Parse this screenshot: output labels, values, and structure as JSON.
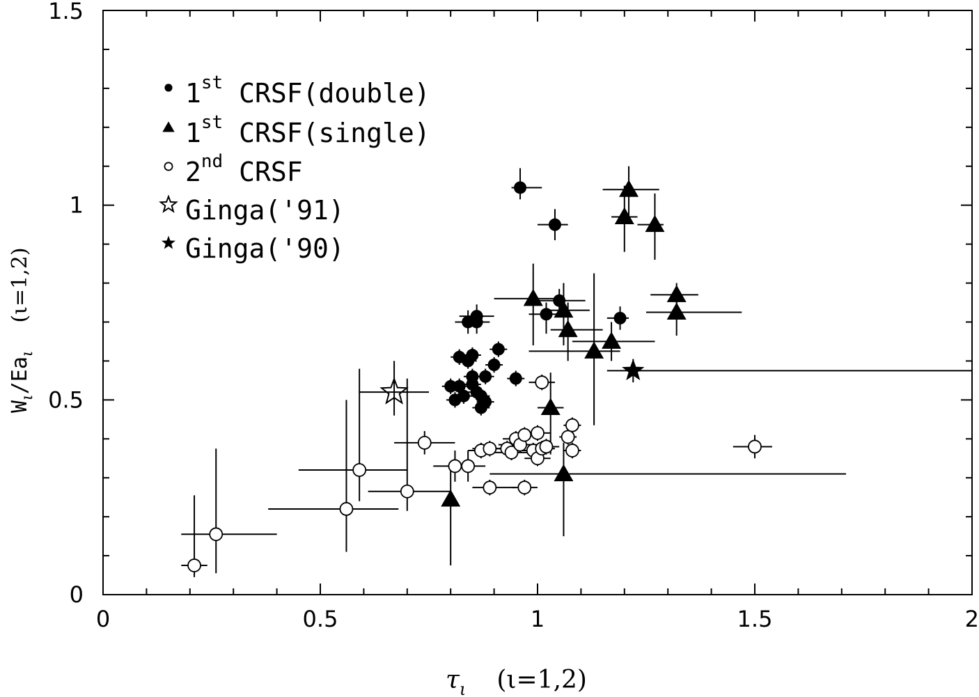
{
  "chart_data": {
    "type": "scatter",
    "xlim": [
      0,
      2
    ],
    "ylim": [
      0,
      1.5
    ],
    "x_ticks": [
      "0",
      "0.5",
      "1",
      "1.5",
      "2"
    ],
    "y_ticks": [
      "0",
      "0.5",
      "1",
      "1.5"
    ],
    "xlabel": {
      "main": "τ",
      "sub": "ι",
      "suffix": "(ι=1,2)"
    },
    "ylabel": {
      "main": "W",
      "sub1": "ι",
      "mid": "/Ea",
      "sub2": "ι",
      "suffix": "(ι=1,2)"
    },
    "grid": false,
    "legend_position": "top-left",
    "legend": [
      {
        "marker": "filled-circle",
        "pre": "1",
        "sup": "st",
        "post": " CRSF(double)"
      },
      {
        "marker": "filled-triangle",
        "pre": "1",
        "sup": "st",
        "post": " CRSF(single)"
      },
      {
        "marker": "open-circle",
        "pre": "2",
        "sup": "nd",
        "post": " CRSF"
      },
      {
        "marker": "open-star",
        "pre": "",
        "sup": "",
        "post": "Ginga('91)"
      },
      {
        "marker": "filled-star",
        "pre": "",
        "sup": "",
        "post": "Ginga('90)"
      }
    ],
    "series": [
      {
        "marker": "filled-circle",
        "points": [
          {
            "x": 0.96,
            "y": 1.045,
            "xerr": [
              0.02,
              0.05
            ],
            "yerr": [
              0.03,
              0.05
            ]
          },
          {
            "x": 1.04,
            "y": 0.95,
            "xerr": [
              0.04,
              0.03
            ],
            "yerr": [
              0.04,
              0.04
            ]
          },
          {
            "x": 1.05,
            "y": 0.755,
            "xerr": [
              0.06,
              0.06
            ],
            "yerr": [
              0.04,
              0.03
            ]
          },
          {
            "x": 1.02,
            "y": 0.72,
            "xerr": [
              0.04,
              0.03
            ],
            "yerr": [
              0.05,
              0.03
            ]
          },
          {
            "x": 1.19,
            "y": 0.71,
            "xerr": [
              0.03,
              0.02
            ],
            "yerr": [
              0.03,
              0.03
            ]
          },
          {
            "x": 0.86,
            "y": 0.715,
            "xerr": [
              0.04,
              0.04
            ],
            "yerr": [
              0.03,
              0.03
            ]
          },
          {
            "x": 0.84,
            "y": 0.7,
            "xerr": [
              0.03,
              0.03
            ],
            "yerr": [
              0.03,
              0.03
            ]
          },
          {
            "x": 0.86,
            "y": 0.7,
            "xerr": [
              0.03,
              0.03
            ],
            "yerr": [
              0.03,
              0.03
            ]
          },
          {
            "x": 0.91,
            "y": 0.63,
            "xerr": [
              0.02,
              0.02
            ],
            "yerr": [
              0.02,
              0.02
            ]
          },
          {
            "x": 0.82,
            "y": 0.61,
            "xerr": [
              0.02,
              0.02
            ],
            "yerr": [
              0.02,
              0.02
            ]
          },
          {
            "x": 0.84,
            "y": 0.6,
            "xerr": [
              0.02,
              0.02
            ],
            "yerr": [
              0.02,
              0.02
            ]
          },
          {
            "x": 0.85,
            "y": 0.615,
            "xerr": [
              0.02,
              0.02
            ],
            "yerr": [
              0.02,
              0.02
            ]
          },
          {
            "x": 0.9,
            "y": 0.59,
            "xerr": [
              0.02,
              0.02
            ],
            "yerr": [
              0.02,
              0.02
            ]
          },
          {
            "x": 0.95,
            "y": 0.555,
            "xerr": [
              0.02,
              0.02
            ],
            "yerr": [
              0.02,
              0.02
            ]
          },
          {
            "x": 0.88,
            "y": 0.56,
            "xerr": [
              0.02,
              0.02
            ],
            "yerr": [
              0.02,
              0.02
            ]
          },
          {
            "x": 0.85,
            "y": 0.56,
            "xerr": [
              0.02,
              0.02
            ],
            "yerr": [
              0.02,
              0.02
            ]
          },
          {
            "x": 0.8,
            "y": 0.535,
            "xerr": [
              0.02,
              0.02
            ],
            "yerr": [
              0.02,
              0.02
            ]
          },
          {
            "x": 0.82,
            "y": 0.535,
            "xerr": [
              0.02,
              0.02
            ],
            "yerr": [
              0.02,
              0.02
            ]
          },
          {
            "x": 0.85,
            "y": 0.54,
            "xerr": [
              0.02,
              0.02
            ],
            "yerr": [
              0.02,
              0.02
            ]
          },
          {
            "x": 0.86,
            "y": 0.52,
            "xerr": [
              0.02,
              0.02
            ],
            "yerr": [
              0.02,
              0.02
            ]
          },
          {
            "x": 0.83,
            "y": 0.51,
            "xerr": [
              0.02,
              0.02
            ],
            "yerr": [
              0.02,
              0.02
            ]
          },
          {
            "x": 0.81,
            "y": 0.5,
            "xerr": [
              0.02,
              0.02
            ],
            "yerr": [
              0.02,
              0.02
            ]
          },
          {
            "x": 0.87,
            "y": 0.51,
            "xerr": [
              0.02,
              0.02
            ],
            "yerr": [
              0.02,
              0.02
            ]
          },
          {
            "x": 0.88,
            "y": 0.495,
            "xerr": [
              0.02,
              0.02
            ],
            "yerr": [
              0.02,
              0.02
            ]
          },
          {
            "x": 0.87,
            "y": 0.48,
            "xerr": [
              0.02,
              0.02
            ],
            "yerr": [
              0.02,
              0.02
            ]
          }
        ]
      },
      {
        "marker": "filled-triangle",
        "points": [
          {
            "x": 1.21,
            "y": 1.04,
            "xerr": [
              0.06,
              0.07
            ],
            "yerr": [
              0.07,
              0.06
            ]
          },
          {
            "x": 1.2,
            "y": 0.97,
            "xerr": [
              0.03,
              0.03
            ],
            "yerr": [
              0.09,
              0.08
            ]
          },
          {
            "x": 1.27,
            "y": 0.95,
            "xerr": [
              0.04,
              0.02
            ],
            "yerr": [
              0.09,
              0.08
            ]
          },
          {
            "x": 0.99,
            "y": 0.76,
            "xerr": [
              0.09,
              0.07
            ],
            "yerr": [
              0.12,
              0.09
            ]
          },
          {
            "x": 1.06,
            "y": 0.73,
            "xerr": [
              0.04,
              0.06
            ],
            "yerr": [
              0.09,
              0.07
            ]
          },
          {
            "x": 1.07,
            "y": 0.68,
            "xerr": [
              0.04,
              0.08
            ],
            "yerr": [
              0.08,
              0.07
            ]
          },
          {
            "x": 1.32,
            "y": 0.77,
            "xerr": [
              0.06,
              0.05
            ],
            "yerr": [
              0.05,
              0.03
            ]
          },
          {
            "x": 1.32,
            "y": 0.725,
            "xerr": [
              0.07,
              0.15
            ],
            "yerr": [
              0.06,
              0.05
            ]
          },
          {
            "x": 1.17,
            "y": 0.65,
            "xerr": [
              0.09,
              0.1
            ],
            "yerr": [
              0.05,
              0.05
            ]
          },
          {
            "x": 1.13,
            "y": 0.625,
            "xerr": [
              0.15,
              0.06
            ],
            "yerr": [
              0.19,
              0.2
            ]
          },
          {
            "x": 1.03,
            "y": 0.48,
            "xerr": [
              0.03,
              0.03
            ],
            "yerr": [
              0.12,
              0.09
            ]
          },
          {
            "x": 1.06,
            "y": 0.31,
            "xerr": [
              0.17,
              0.65
            ],
            "yerr": [
              0.16,
              0.08
            ]
          },
          {
            "x": 0.8,
            "y": 0.245,
            "xerr": [
              0.01,
              0.01
            ],
            "yerr": [
              0.17,
              0.09
            ]
          }
        ]
      },
      {
        "marker": "open-circle",
        "points": [
          {
            "x": 0.21,
            "y": 0.075,
            "xerr": [
              0.03,
              0.03
            ],
            "yerr": [
              0.03,
              0.18
            ]
          },
          {
            "x": 0.26,
            "y": 0.155,
            "xerr": [
              0.08,
              0.14
            ],
            "yerr": [
              0.1,
              0.22
            ]
          },
          {
            "x": 0.56,
            "y": 0.22,
            "xerr": [
              0.18,
              0.12
            ],
            "yerr": [
              0.11,
              0.28
            ]
          },
          {
            "x": 0.59,
            "y": 0.32,
            "xerr": [
              0.14,
              0.11
            ],
            "yerr": [
              0.08,
              0.26
            ]
          },
          {
            "x": 0.7,
            "y": 0.265,
            "xerr": [
              0.09,
              0.1
            ],
            "yerr": [
              0.05,
              0.29
            ]
          },
          {
            "x": 0.74,
            "y": 0.39,
            "xerr": [
              0.07,
              0.07
            ],
            "yerr": [
              0.03,
              0.03
            ]
          },
          {
            "x": 0.81,
            "y": 0.33,
            "xerr": [
              0.05,
              0.04
            ],
            "yerr": [
              0.04,
              0.04
            ]
          },
          {
            "x": 0.84,
            "y": 0.33,
            "xerr": [
              0.04,
              0.04
            ],
            "yerr": [
              0.04,
              0.04
            ]
          },
          {
            "x": 0.87,
            "y": 0.37,
            "xerr": [
              0.03,
              0.03
            ],
            "yerr": [
              0.02,
              0.02
            ]
          },
          {
            "x": 0.89,
            "y": 0.375,
            "xerr": [
              0.04,
              0.04
            ],
            "yerr": [
              0.02,
              0.02
            ]
          },
          {
            "x": 0.89,
            "y": 0.275,
            "xerr": [
              0.04,
              0.06
            ],
            "yerr": [
              0.02,
              0.02
            ]
          },
          {
            "x": 0.93,
            "y": 0.375,
            "xerr": [
              0.04,
              0.04
            ],
            "yerr": [
              0.02,
              0.02
            ]
          },
          {
            "x": 0.94,
            "y": 0.365,
            "xerr": [
              0.04,
              0.04
            ],
            "yerr": [
              0.02,
              0.02
            ]
          },
          {
            "x": 0.95,
            "y": 0.4,
            "xerr": [
              0.03,
              0.03
            ],
            "yerr": [
              0.02,
              0.02
            ]
          },
          {
            "x": 0.96,
            "y": 0.385,
            "xerr": [
              0.05,
              0.05
            ],
            "yerr": [
              0.02,
              0.02
            ]
          },
          {
            "x": 0.97,
            "y": 0.41,
            "xerr": [
              0.03,
              0.03
            ],
            "yerr": [
              0.02,
              0.02
            ]
          },
          {
            "x": 0.97,
            "y": 0.275,
            "xerr": [
              0.03,
              0.03
            ],
            "yerr": [
              0.02,
              0.02
            ]
          },
          {
            "x": 0.99,
            "y": 0.37,
            "xerr": [
              0.04,
              0.04
            ],
            "yerr": [
              0.02,
              0.02
            ]
          },
          {
            "x": 1.0,
            "y": 0.415,
            "xerr": [
              0.03,
              0.03
            ],
            "yerr": [
              0.02,
              0.02
            ]
          },
          {
            "x": 1.0,
            "y": 0.35,
            "xerr": [
              0.03,
              0.03
            ],
            "yerr": [
              0.02,
              0.02
            ]
          },
          {
            "x": 1.01,
            "y": 0.545,
            "xerr": [
              0.03,
              0.03
            ],
            "yerr": [
              0.02,
              0.02
            ]
          },
          {
            "x": 1.01,
            "y": 0.375,
            "xerr": [
              0.03,
              0.03
            ],
            "yerr": [
              0.02,
              0.02
            ]
          },
          {
            "x": 1.02,
            "y": 0.38,
            "xerr": [
              0.03,
              0.03
            ],
            "yerr": [
              0.02,
              0.02
            ]
          },
          {
            "x": 1.07,
            "y": 0.405,
            "xerr": [
              0.02,
              0.02
            ],
            "yerr": [
              0.02,
              0.02
            ]
          },
          {
            "x": 1.08,
            "y": 0.435,
            "xerr": [
              0.02,
              0.02
            ],
            "yerr": [
              0.02,
              0.02
            ]
          },
          {
            "x": 1.08,
            "y": 0.37,
            "xerr": [
              0.02,
              0.02
            ],
            "yerr": [
              0.02,
              0.02
            ]
          },
          {
            "x": 1.5,
            "y": 0.38,
            "xerr": [
              0.05,
              0.04
            ],
            "yerr": [
              0.03,
              0.03
            ]
          }
        ]
      },
      {
        "marker": "open-star",
        "points": [
          {
            "x": 0.67,
            "y": 0.52,
            "xerr": [
              0.08,
              0.08
            ],
            "yerr": [
              0.06,
              0.08
            ]
          }
        ]
      },
      {
        "marker": "filled-star",
        "points": [
          {
            "x": 1.22,
            "y": 0.575,
            "xerr": [
              0.06,
              0.78
            ],
            "yerr": [
              0.03,
              0.03
            ]
          }
        ]
      }
    ]
  }
}
